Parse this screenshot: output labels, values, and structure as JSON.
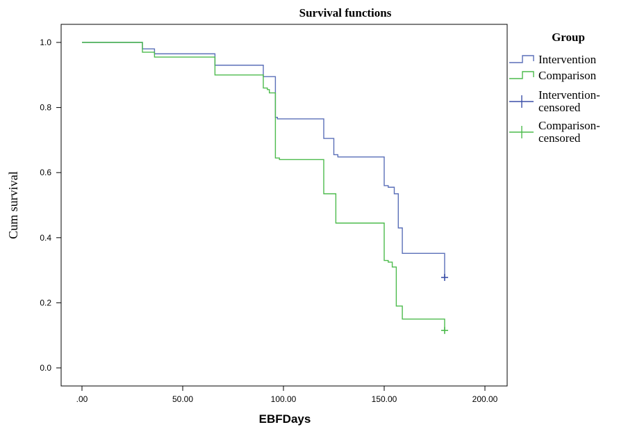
{
  "chart_data": {
    "type": "line",
    "title": "Survival functions",
    "xlabel": "EBFDays",
    "ylabel": "Cum survival",
    "xlim": [
      0,
      200
    ],
    "ylim": [
      0,
      1.0
    ],
    "x_ticks": [
      ".00",
      "50.00",
      "100.00",
      "150.00",
      "200.00"
    ],
    "x_tick_values": [
      0,
      50,
      100,
      150,
      200
    ],
    "y_ticks": [
      "0.0",
      "0.2",
      "0.4",
      "0.6",
      "0.8",
      "1.0"
    ],
    "y_tick_values": [
      0,
      0.2,
      0.4,
      0.6,
      0.8,
      1.0
    ],
    "grid": false,
    "legend": {
      "title": "Group",
      "placement": "right",
      "entries": [
        {
          "label": "Intervention",
          "type": "line",
          "color": "#5a6fb8"
        },
        {
          "label": "Comparison",
          "type": "line",
          "color": "#4cbb4c"
        },
        {
          "label": "Intervention-\ncensored",
          "type": "censor",
          "color": "#3b4fa8"
        },
        {
          "label": "Comparison-\ncensored",
          "type": "censor",
          "color": "#4cbb4c"
        }
      ]
    },
    "series": [
      {
        "name": "Intervention",
        "color": "#5a6fb8",
        "steps": [
          [
            0,
            1.0
          ],
          [
            30,
            0.98
          ],
          [
            36,
            0.965
          ],
          [
            66,
            0.93
          ],
          [
            90,
            0.895
          ],
          [
            96,
            0.77
          ],
          [
            97,
            0.765
          ],
          [
            120,
            0.705
          ],
          [
            125,
            0.655
          ],
          [
            127,
            0.648
          ],
          [
            150,
            0.56
          ],
          [
            152,
            0.555
          ],
          [
            155,
            0.535
          ],
          [
            157,
            0.43
          ],
          [
            159,
            0.352
          ],
          [
            180,
            0.278
          ]
        ],
        "censored": [
          [
            180,
            0.278
          ]
        ]
      },
      {
        "name": "Comparison",
        "color": "#4cbb4c",
        "steps": [
          [
            0,
            1.0
          ],
          [
            30,
            0.97
          ],
          [
            36,
            0.955
          ],
          [
            66,
            0.9
          ],
          [
            90,
            0.86
          ],
          [
            92,
            0.855
          ],
          [
            93,
            0.845
          ],
          [
            96,
            0.645
          ],
          [
            98,
            0.64
          ],
          [
            120,
            0.535
          ],
          [
            126,
            0.445
          ],
          [
            150,
            0.33
          ],
          [
            152,
            0.325
          ],
          [
            154,
            0.31
          ],
          [
            156,
            0.19
          ],
          [
            159,
            0.15
          ],
          [
            180,
            0.115
          ]
        ],
        "censored": [
          [
            180,
            0.115
          ]
        ]
      }
    ]
  }
}
